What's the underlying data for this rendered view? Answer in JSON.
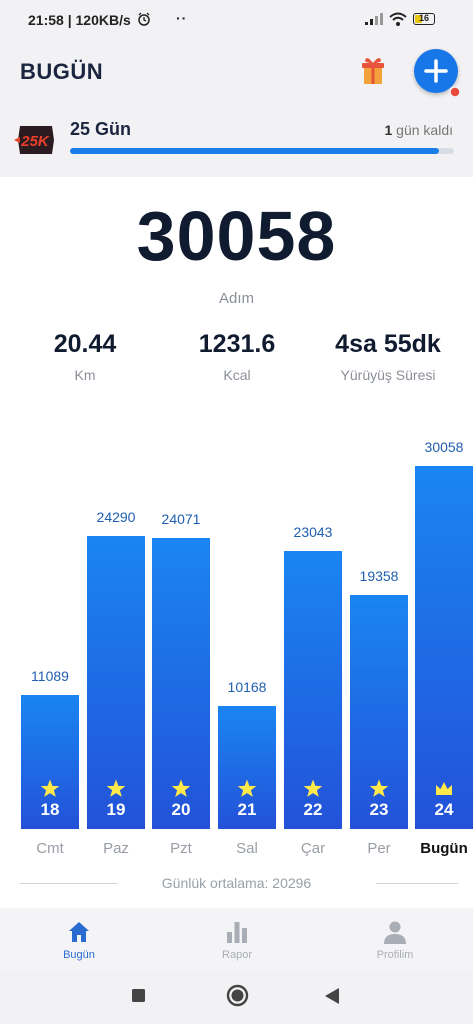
{
  "status_bar": {
    "time_speed": "21:58 | 120KB/s",
    "dots": "··",
    "battery": "16"
  },
  "header": {
    "title": "BUGÜN"
  },
  "goal": {
    "badge": "25K",
    "label": "25 Gün",
    "remaining_number": "1",
    "remaining_text": " gün kaldı",
    "progress": 0.96
  },
  "summary": {
    "steps": "30058",
    "steps_label": "Adım",
    "distance": "20.44",
    "distance_label": "Km",
    "calories": "1231.6",
    "calories_label": "Kcal",
    "duration": "4sa 55dk",
    "duration_label": "Yürüyüş Süresi"
  },
  "chart_data": {
    "type": "bar",
    "categories": [
      "Cmt",
      "Paz",
      "Pzt",
      "Sal",
      "Çar",
      "Per",
      "Bugün"
    ],
    "days": [
      "18",
      "19",
      "20",
      "21",
      "22",
      "23",
      "24"
    ],
    "values": [
      11089,
      24290,
      24071,
      10168,
      23043,
      19358,
      30058
    ],
    "markers": [
      "star",
      "star",
      "star",
      "star",
      "star",
      "star",
      "crown"
    ],
    "highlight_index": 6,
    "colors": {
      "bar_top": "#1a85f2",
      "bar_bottom": "#2352d8",
      "value_label": "#1f5fb0",
      "star": "#ffe94a"
    },
    "average_label": "Günlük ortalama: 20296"
  },
  "tabs": [
    {
      "label": "Bugün",
      "icon": "home-icon",
      "active": true
    },
    {
      "label": "Rapor",
      "icon": "bar-chart-icon",
      "active": false
    },
    {
      "label": "Profilim",
      "icon": "person-icon",
      "active": false
    }
  ],
  "colors": {
    "accent": "#1877e8",
    "tab_active": "#2a6bd1",
    "tab_inactive": "#a9adb5"
  }
}
